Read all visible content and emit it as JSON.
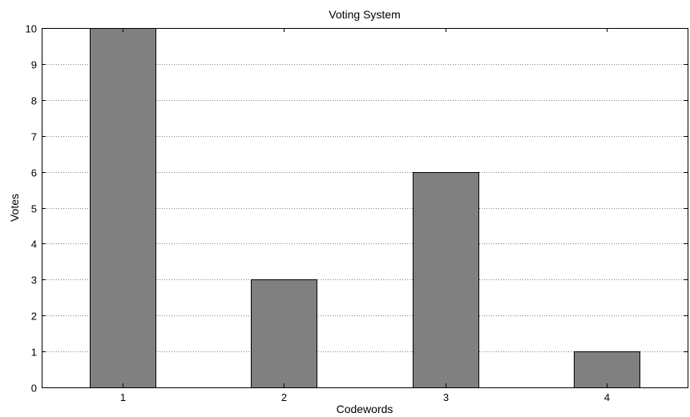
{
  "chart_data": {
    "type": "bar",
    "title": "Voting System",
    "xlabel": "Codewords",
    "ylabel": "Votes",
    "categories": [
      "1",
      "2",
      "3",
      "4"
    ],
    "values": [
      10,
      3,
      6,
      1
    ],
    "ylim": [
      0,
      10
    ],
    "yticks": [
      0,
      1,
      2,
      3,
      4,
      5,
      6,
      7,
      8,
      9,
      10
    ],
    "grid": "y-dotted",
    "bar_color": "#808080",
    "bar_edge_color": "#000000"
  }
}
